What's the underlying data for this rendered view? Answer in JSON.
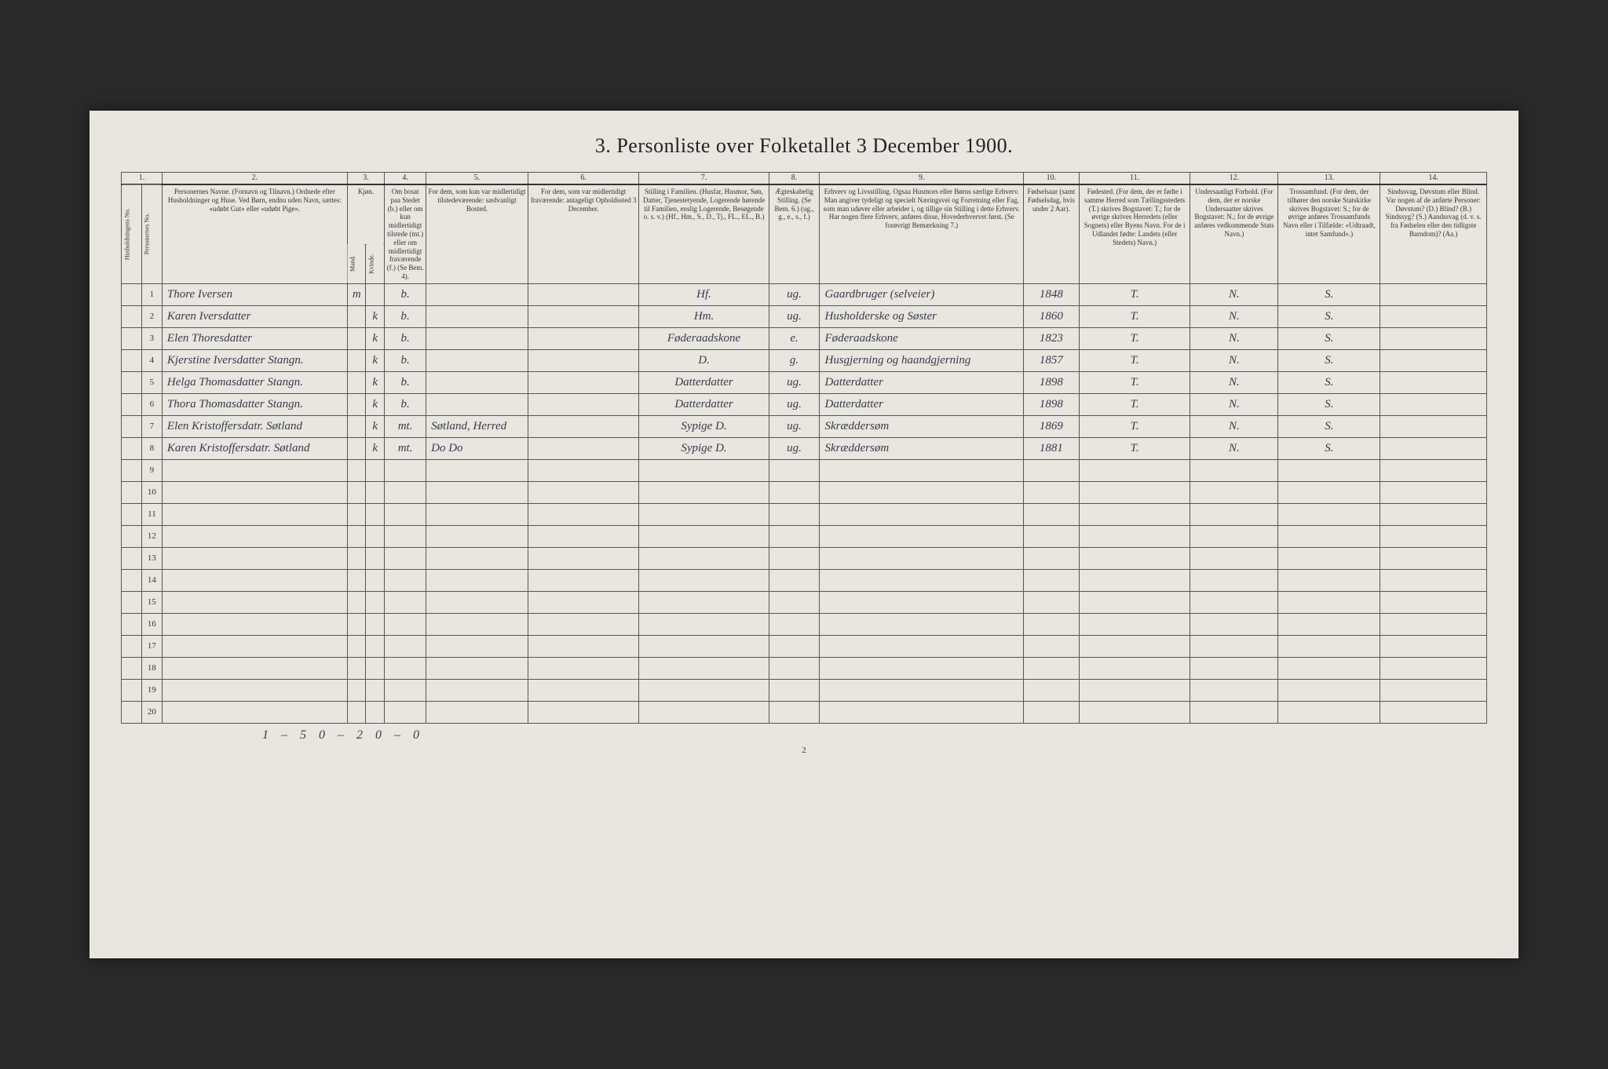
{
  "title": "3. Personliste over Folketallet 3 December 1900.",
  "colnums": [
    "1.",
    "2.",
    "3.",
    "4.",
    "5.",
    "6.",
    "7.",
    "8.",
    "9.",
    "10.",
    "11.",
    "12.",
    "13.",
    "14."
  ],
  "headers": {
    "c1a": "Husholdningens No.",
    "c1b": "Personernes No.",
    "c2": "Personernes Navne.\n(Fornavn og Tilnavn.)\nOrdnede efter Husholdninger og Huse.\nVed Børn, endnu uden Navn, sættes: «udøbt Gut» eller «udøbt Pige».",
    "c3a": "Kjøn.",
    "c3m": "Mand.",
    "c3k": "Kvinde.",
    "c4": "Om bosat paa Stedet (b.) eller om kun midlertidigt tilstede (mt.) eller om midlertidigt fraværende (f.)\n(Se Bem. 4).",
    "c5": "For dem, som kun var midlertidigt tilstedeværende:\nsædvanligt Bosted.",
    "c6": "For dem, som var midlertidigt fraværende:\nantageligt Opholdssted 3 December.",
    "c7": "Stilling i Familien.\n(Husfar, Husmor, Søn, Datter, Tjenestetyende, Logerende hørende til Familien, enslig Logerende, Besøgende o. s. v.)\n(Hf., Hm., S., D., Tj., FL., EL., B.)",
    "c8": "Ægteskabelig Stilling.\n(Se Bem. 6.)\n(ug., g., e., s., f.)",
    "c9": "Erhverv og Livsstilling.\nOgsaa Husmors eller Børns særlige Erhverv. Man angiver tydeligt og specielt Næringsvei og Forretning eller Fag, som man udøver eller arbeider i, og tillige sin Stilling i dette Erhverv. Har nogen flere Erhverv, anføres disse, Hovederhvervet først.\n(Se forøvrigt Bemærkning 7.)",
    "c10": "Fødselsaar\n(samt Fødselsdag, hvis under 2 Aar).",
    "c11": "Fødested.\n(For dem, der er fødte i samme Herred som Tællingsstedets (T.) skrives Bogstavet: T.; for de øvrige skrives Herredets (eller Sognets) eller Byens Navn. For de i Udlandet fødte: Landets (eller Stedets) Navn.)",
    "c12": "Undersaatligt Forhold.\n(For dem, der er norske Undersaatter skrives Bogstavet: N.; for de øvrige anføres vedkommende Stats Navn.)",
    "c13": "Trossamfund.\n(For dem, der tilhører den norske Statskirke skrives Bogstavet: S.; for de øvrige anføres Trossamfunds Navn eller i Tilfælde: «Udtraadt, intet Samfund».)",
    "c14": "Sindssvag, Døvstum eller Blind.\nVar nogen af de anførte Personer:\nDøvstum? (D.)\nBlind? (B.)\nSindssyg? (S.)\nAandssvag (d. v. s. fra Fødselen eller den tidligste Barndom)? (Aa.)"
  },
  "rows": [
    {
      "n": "1",
      "name": "Thore Iversen",
      "m": "m",
      "k": "",
      "res": "b.",
      "c5": "",
      "c6": "",
      "fam": "Hf.",
      "eg": "ug.",
      "occ": "Gaardbruger (selveier)",
      "yr": "1848",
      "birthpl": "T.",
      "nat": "N.",
      "rel": "S.",
      "c14": ""
    },
    {
      "n": "2",
      "name": "Karen Iversdatter",
      "m": "",
      "k": "k",
      "res": "b.",
      "c5": "",
      "c6": "",
      "fam": "Hm.",
      "eg": "ug.",
      "occ": "Husholderske og Søster",
      "yr": "1860",
      "birthpl": "T.",
      "nat": "N.",
      "rel": "S.",
      "c14": ""
    },
    {
      "n": "3",
      "name": "Elen Thoresdatter",
      "m": "",
      "k": "k",
      "res": "b.",
      "c5": "",
      "c6": "",
      "fam": "Føderaadskone",
      "eg": "e.",
      "occ": "Føderaadskone",
      "yr": "1823",
      "birthpl": "T.",
      "nat": "N.",
      "rel": "S.",
      "c14": ""
    },
    {
      "n": "4",
      "name": "Kjerstine Iversdatter Stangn.",
      "m": "",
      "k": "k",
      "res": "b.",
      "c5": "",
      "c6": "",
      "fam": "D.",
      "eg": "g.",
      "occ": "Husgjerning og haandgjerning",
      "yr": "1857",
      "birthpl": "T.",
      "nat": "N.",
      "rel": "S.",
      "c14": ""
    },
    {
      "n": "5",
      "name": "Helga Thomasdatter Stangn.",
      "m": "",
      "k": "k",
      "res": "b.",
      "c5": "",
      "c6": "",
      "fam": "Datterdatter",
      "eg": "ug.",
      "occ": "Datterdatter",
      "yr": "1898",
      "birthpl": "T.",
      "nat": "N.",
      "rel": "S.",
      "c14": ""
    },
    {
      "n": "6",
      "name": "Thora Thomasdatter Stangn.",
      "m": "",
      "k": "k",
      "res": "b.",
      "c5": "",
      "c6": "",
      "fam": "Datterdatter",
      "eg": "ug.",
      "occ": "Datterdatter",
      "yr": "1898",
      "birthpl": "T.",
      "nat": "N.",
      "rel": "S.",
      "c14": ""
    },
    {
      "n": "7",
      "name": "Elen Kristoffersdatr. Søtland",
      "m": "",
      "k": "k",
      "res": "mt.",
      "c5": "Søtland, Herred",
      "c6": "",
      "fam": "Sypige D.",
      "eg": "ug.",
      "occ": "Skræddersøm",
      "yr": "1869",
      "birthpl": "T.",
      "nat": "N.",
      "rel": "S.",
      "c14": ""
    },
    {
      "n": "8",
      "name": "Karen Kristoffersdatr. Søtland",
      "m": "",
      "k": "k",
      "res": "mt.",
      "c5": "Do Do",
      "c6": "",
      "fam": "Sypige D.",
      "eg": "ug.",
      "occ": "Skræddersøm",
      "yr": "1881",
      "birthpl": "T.",
      "nat": "N.",
      "rel": "S.",
      "c14": ""
    }
  ],
  "emptyRows": [
    "9",
    "10",
    "11",
    "12",
    "13",
    "14",
    "15",
    "16",
    "17",
    "18",
    "19",
    "20"
  ],
  "tally": "1 – 5    0 – 2    0 – 0",
  "pagenum": "2"
}
